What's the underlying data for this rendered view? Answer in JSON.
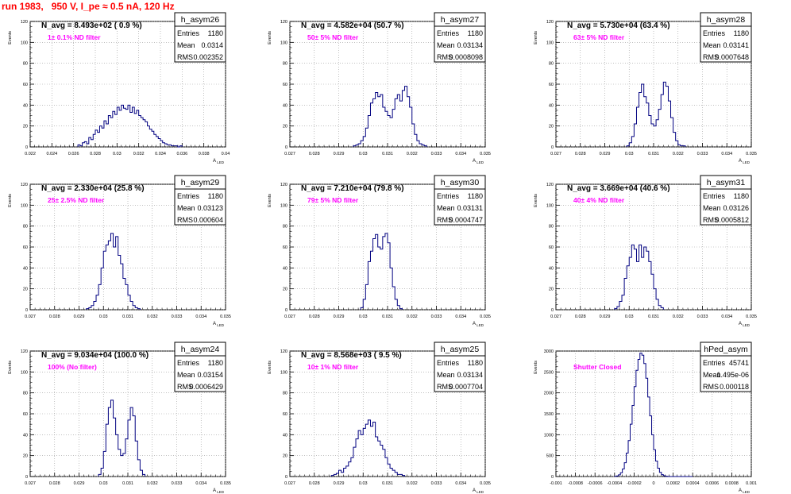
{
  "page": {
    "title": "run 1983,   950 V, I_pe ≈ 0.5 nA, 120 Hz"
  },
  "colors": {
    "title": "#ff0000",
    "line": "#000080",
    "label": "#ff00ff",
    "grid": "#999999"
  },
  "chart_data": [
    {
      "type": "histogram",
      "name": "h_asym26",
      "title": "N_avg = 8.493e+02 ( 0.9 %)",
      "label": "1± 0.1% ND filter",
      "ylabel": "Events",
      "xlabel": "A_{LED}",
      "xlim": [
        0.022,
        0.04
      ],
      "ylim": [
        0,
        120
      ],
      "xticks": [
        "0.022",
        "0.024",
        "0.026",
        "0.028",
        "0.03",
        "0.032",
        "0.034",
        "0.036",
        "0.038",
        "0.04"
      ],
      "yticks": [
        "0",
        "20",
        "40",
        "60",
        "80",
        "100",
        "120"
      ],
      "stats": [
        [
          "Entries",
          "1180"
        ],
        [
          "Mean",
          "0.0314"
        ],
        [
          "RMS",
          "0.002352"
        ]
      ],
      "bin_start": 0.0264,
      "bin_width": 0.0002,
      "values": [
        2,
        1,
        4,
        5,
        3,
        9,
        7,
        12,
        16,
        14,
        20,
        18,
        25,
        22,
        30,
        28,
        34,
        31,
        38,
        35,
        40,
        37,
        36,
        40,
        33,
        38,
        32,
        35,
        30,
        28,
        26,
        24,
        20,
        17,
        15,
        12,
        10,
        8,
        6,
        4,
        3,
        2,
        2,
        1,
        1,
        1,
        0,
        1
      ]
    },
    {
      "type": "histogram",
      "name": "h_asym27",
      "title": "N_avg = 4.582e+04 (50.7 %)",
      "label": "50± 5% ND filter",
      "ylabel": "Events",
      "xlabel": "A_{LED}",
      "xlim": [
        0.027,
        0.035
      ],
      "ylim": [
        0,
        120
      ],
      "xticks": [
        "0.027",
        "0.028",
        "0.029",
        "0.03",
        "0.031",
        "0.032",
        "0.033",
        "0.034",
        "0.035"
      ],
      "yticks": [
        "0",
        "20",
        "40",
        "60",
        "80",
        "100",
        "120"
      ],
      "stats": [
        [
          "Entries",
          "1180"
        ],
        [
          "Mean",
          "0.03134"
        ],
        [
          "RMS",
          "0.0008098"
        ]
      ],
      "bin_start": 0.0296,
      "bin_width": 0.0001,
      "values": [
        1,
        2,
        3,
        6,
        10,
        18,
        30,
        42,
        46,
        52,
        48,
        50,
        38,
        34,
        30,
        28,
        36,
        46,
        50,
        44,
        54,
        58,
        48,
        38,
        22,
        12,
        6,
        3,
        2,
        1
      ]
    },
    {
      "type": "histogram",
      "name": "h_asym28",
      "title": "N_avg = 5.730e+04 (63.4 %)",
      "label": "63± 5% ND filter",
      "ylabel": "Events",
      "xlabel": "A_{LED}",
      "xlim": [
        0.027,
        0.035
      ],
      "ylim": [
        0,
        120
      ],
      "xticks": [
        "0.027",
        "0.028",
        "0.029",
        "0.03",
        "0.031",
        "0.032",
        "0.033",
        "0.034",
        "0.035"
      ],
      "yticks": [
        "0",
        "20",
        "40",
        "60",
        "80",
        "100",
        "120"
      ],
      "stats": [
        [
          "Entries",
          "1180"
        ],
        [
          "Mean",
          "0.03141"
        ],
        [
          "RMS",
          "0.0007648"
        ]
      ],
      "bin_start": 0.0299,
      "bin_width": 0.0001,
      "values": [
        1,
        4,
        10,
        22,
        38,
        52,
        60,
        48,
        42,
        30,
        22,
        20,
        26,
        36,
        50,
        62,
        58,
        44,
        28,
        14,
        6,
        2,
        1,
        1
      ]
    },
    {
      "type": "histogram",
      "name": "h_asym29",
      "title": "N_avg = 2.330e+04 (25.8 %)",
      "label": "25± 2.5% ND filter",
      "ylabel": "Events",
      "xlabel": "A_{LED}",
      "xlim": [
        0.027,
        0.035
      ],
      "ylim": [
        0,
        120
      ],
      "xticks": [
        "0.027",
        "0.028",
        "0.029",
        "0.03",
        "0.031",
        "0.032",
        "0.033",
        "0.034",
        "0.035"
      ],
      "yticks": [
        "0",
        "20",
        "40",
        "60",
        "80",
        "100",
        "120"
      ],
      "stats": [
        [
          "Entries",
          "1180"
        ],
        [
          "Mean",
          "0.03123"
        ],
        [
          "RMS",
          "0.000604"
        ]
      ],
      "bin_start": 0.0293,
      "bin_width": 0.0001,
      "values": [
        1,
        2,
        4,
        8,
        14,
        24,
        40,
        56,
        62,
        66,
        73,
        60,
        70,
        52,
        44,
        30,
        24,
        14,
        8,
        4,
        2,
        1
      ]
    },
    {
      "type": "histogram",
      "name": "h_asym30",
      "title": "N_avg = 7.210e+04 (79.8 %)",
      "label": "79± 5% ND filter",
      "ylabel": "Events",
      "xlabel": "A_{LED}",
      "xlim": [
        0.027,
        0.035
      ],
      "ylim": [
        0,
        120
      ],
      "xticks": [
        "0.027",
        "0.028",
        "0.029",
        "0.03",
        "0.031",
        "0.032",
        "0.033",
        "0.034",
        "0.035"
      ],
      "yticks": [
        "0",
        "20",
        "40",
        "60",
        "80",
        "100",
        "120"
      ],
      "stats": [
        [
          "Entries",
          "1180"
        ],
        [
          "Mean",
          "0.03131"
        ],
        [
          "RMS",
          "0.0004747"
        ]
      ],
      "bin_start": 0.0299,
      "bin_width": 0.0001,
      "values": [
        2,
        10,
        24,
        46,
        56,
        68,
        72,
        60,
        58,
        70,
        73,
        64,
        40,
        22,
        10,
        4,
        1
      ]
    },
    {
      "type": "histogram",
      "name": "h_asym31",
      "title": "N_avg = 3.669e+04 (40.6 %)",
      "label": "40± 4% ND filter",
      "ylabel": "Events",
      "xlabel": "A_{LED}",
      "xlim": [
        0.027,
        0.035
      ],
      "ylim": [
        0,
        120
      ],
      "xticks": [
        "0.027",
        "0.028",
        "0.029",
        "0.03",
        "0.031",
        "0.032",
        "0.033",
        "0.034",
        "0.035"
      ],
      "yticks": [
        "0",
        "20",
        "40",
        "60",
        "80",
        "100",
        "120"
      ],
      "stats": [
        [
          "Entries",
          "1180"
        ],
        [
          "Mean",
          "0.03126"
        ],
        [
          "RMS",
          "0.0005812"
        ]
      ],
      "bin_start": 0.0294,
      "bin_width": 0.0001,
      "values": [
        1,
        3,
        8,
        14,
        30,
        42,
        50,
        62,
        58,
        46,
        62,
        50,
        60,
        56,
        46,
        34,
        20,
        10,
        4,
        2
      ]
    },
    {
      "type": "histogram",
      "name": "h_asym24",
      "title": "N_avg = 9.034e+04 (100.0 %)",
      "label": "100% (No filter)",
      "ylabel": "Events",
      "xlabel": "A_{LED}",
      "xlim": [
        0.027,
        0.035
      ],
      "ylim": [
        0,
        120
      ],
      "xticks": [
        "0.027",
        "0.028",
        "0.029",
        "0.03",
        "0.031",
        "0.032",
        "0.033",
        "0.034",
        "0.035"
      ],
      "yticks": [
        "0",
        "20",
        "40",
        "60",
        "80",
        "100",
        "120"
      ],
      "stats": [
        [
          "Entries",
          "1180"
        ],
        [
          "Mean",
          "0.03154"
        ],
        [
          "RMS",
          "0.0006429"
        ]
      ],
      "bin_start": 0.0298,
      "bin_width": 0.0001,
      "values": [
        2,
        8,
        24,
        50,
        66,
        73,
        56,
        40,
        26,
        20,
        22,
        36,
        54,
        66,
        58,
        34,
        16,
        6,
        2
      ]
    },
    {
      "type": "histogram",
      "name": "h_asym25",
      "title": "N_avg = 8.568e+03 ( 9.5 %)",
      "label": "10± 1% ND filter",
      "ylabel": "Events",
      "xlabel": "A_{LED}",
      "xlim": [
        0.027,
        0.035
      ],
      "ylim": [
        0,
        120
      ],
      "xticks": [
        "0.027",
        "0.028",
        "0.029",
        "0.03",
        "0.031",
        "0.032",
        "0.033",
        "0.034",
        "0.035"
      ],
      "yticks": [
        "0",
        "20",
        "40",
        "60",
        "80",
        "100",
        "120"
      ],
      "stats": [
        [
          "Entries",
          "1180"
        ],
        [
          "Mean",
          "0.03134"
        ],
        [
          "RMS",
          "0.0007704"
        ]
      ],
      "bin_start": 0.0287,
      "bin_width": 0.0001,
      "values": [
        1,
        2,
        3,
        6,
        4,
        8,
        10,
        14,
        18,
        28,
        36,
        44,
        40,
        46,
        50,
        54,
        48,
        52,
        38,
        34,
        30,
        26,
        18,
        12,
        8,
        6,
        4,
        2,
        2,
        1
      ]
    },
    {
      "type": "histogram",
      "name": "hPed_asym",
      "title": "",
      "label": "Shutter Closed",
      "ylabel": "Events",
      "xlabel": "A_{LED}",
      "xlim": [
        -0.001,
        0.001
      ],
      "ylim": [
        0,
        3000
      ],
      "xticks": [
        "-0.001",
        "-0.0008",
        "-0.0006",
        "-0.0004",
        "-0.0002",
        "0",
        "0.0002",
        "0.0004",
        "0.0006",
        "0.0008",
        "0.001"
      ],
      "yticks": [
        "0",
        "500",
        "1000",
        "1500",
        "2000",
        "2500",
        "3000"
      ],
      "stats": [
        [
          "Entries",
          "45741"
        ],
        [
          "Mean",
          "1.495e-06"
        ],
        [
          "RMS",
          "0.000118"
        ]
      ],
      "bin_start": -0.0004,
      "bin_width": 2e-05,
      "values": [
        5,
        15,
        40,
        90,
        180,
        330,
        560,
        860,
        1250,
        1700,
        2150,
        2540,
        2800,
        2950,
        2900,
        2700,
        2350,
        1900,
        1450,
        1000,
        640,
        370,
        200,
        100,
        45,
        20,
        8,
        3,
        1,
        1,
        0,
        1,
        0,
        0,
        0,
        0,
        0,
        0,
        0,
        0
      ]
    }
  ]
}
